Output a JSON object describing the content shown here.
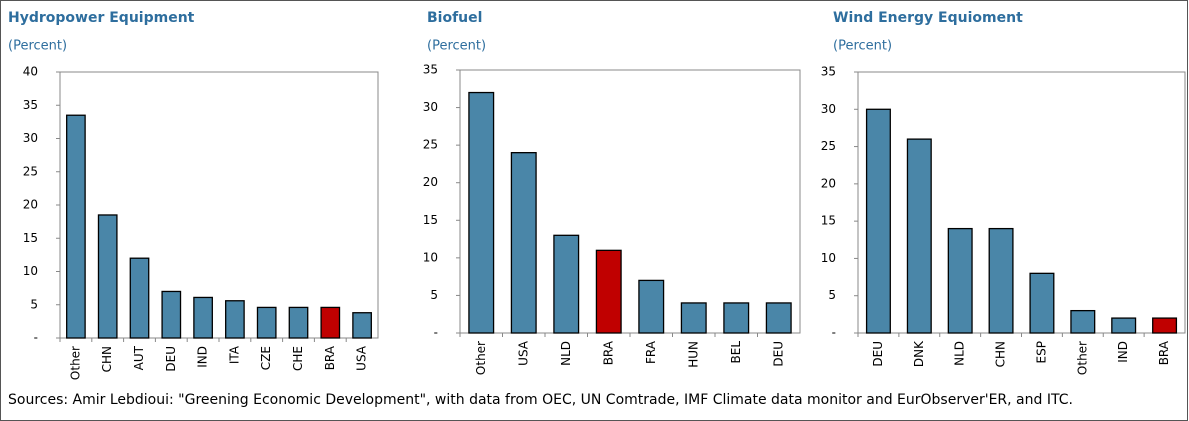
{
  "chart_data": [
    {
      "type": "bar",
      "title": "Hydropower Equipment",
      "subtitle": "(Percent)",
      "categories": [
        "Other",
        "CHN",
        "AUT",
        "DEU",
        "IND",
        "ITA",
        "CZE",
        "CHE",
        "BRA",
        "USA"
      ],
      "values": [
        33.5,
        18.5,
        12,
        7,
        6.1,
        5.6,
        4.6,
        4.6,
        4.6,
        3.8
      ],
      "colors": [
        "#4a86a8",
        "#4a86a8",
        "#4a86a8",
        "#4a86a8",
        "#4a86a8",
        "#4a86a8",
        "#4a86a8",
        "#4a86a8",
        "#c00000",
        "#4a86a8"
      ],
      "ylim": [
        0,
        40
      ],
      "yticks": [
        {
          "value": 0,
          "label": "-"
        },
        5,
        10,
        15,
        20,
        25,
        30,
        35,
        40
      ],
      "grid": false
    },
    {
      "type": "bar",
      "title": "Biofuel",
      "subtitle": "(Percent)",
      "categories": [
        "Other",
        "USA",
        "NLD",
        "BRA",
        "FRA",
        "HUN",
        "BEL",
        "DEU"
      ],
      "values": [
        32,
        24,
        13,
        11,
        7,
        4,
        4,
        4
      ],
      "colors": [
        "#4a86a8",
        "#4a86a8",
        "#4a86a8",
        "#c00000",
        "#4a86a8",
        "#4a86a8",
        "#4a86a8",
        "#4a86a8"
      ],
      "ylim": [
        0,
        35
      ],
      "yticks": [
        {
          "value": 0,
          "label": "-"
        },
        5,
        10,
        15,
        20,
        25,
        30,
        35
      ],
      "grid": false
    },
    {
      "type": "bar",
      "title": "Wind Energy Equioment",
      "subtitle": "(Percent)",
      "categories": [
        "DEU",
        "DNK",
        "NLD",
        "CHN",
        "ESP",
        "Other",
        "IND",
        "BRA"
      ],
      "values": [
        30,
        26,
        14,
        14,
        8,
        3,
        2,
        2
      ],
      "colors": [
        "#4a86a8",
        "#4a86a8",
        "#4a86a8",
        "#4a86a8",
        "#4a86a8",
        "#4a86a8",
        "#4a86a8",
        "#c00000"
      ],
      "ylim": [
        0,
        35
      ],
      "yticks": [
        {
          "value": 0,
          "label": "-"
        },
        5,
        10,
        15,
        20,
        25,
        30,
        35
      ],
      "grid": false
    }
  ],
  "source": "Sources: Amir Lebdioui: \"Greening Economic Development\", with data from OEC, UN Comtrade, IMF Climate data monitor and EurObserver'ER, and ITC."
}
